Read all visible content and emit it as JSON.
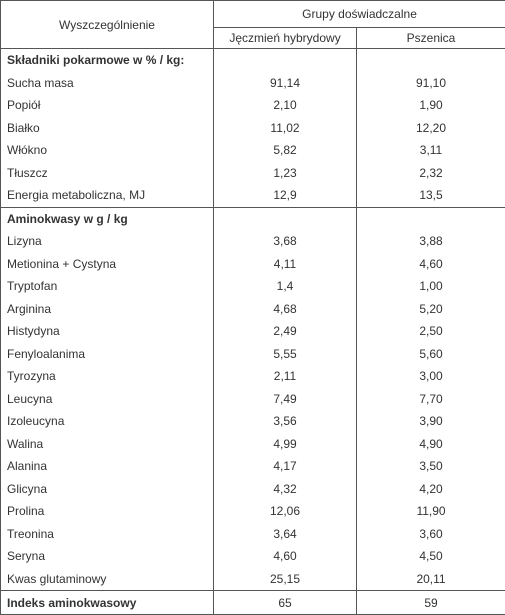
{
  "header": {
    "row_label": "Wyszczególnienie",
    "group": "Grupy doświadczalne",
    "columns": [
      "Jęczmień hybrydowy",
      "Pszenica"
    ]
  },
  "sections": [
    {
      "title": "Składniki pokarmowe w % / kg:",
      "rows": [
        [
          "Sucha masa",
          "91,14",
          "91,10"
        ],
        [
          "Popiół",
          "2,10",
          "1,90"
        ],
        [
          "Białko",
          "11,02",
          "12,20"
        ],
        [
          "Włókno",
          "5,82",
          "3,11"
        ],
        [
          "Tłuszcz",
          "1,23",
          "2,32"
        ],
        [
          "Energia metaboliczna, MJ",
          "12,9",
          "13,5"
        ]
      ]
    },
    {
      "title": "Aminokwasy w g / kg",
      "rows": [
        [
          "Lizyna",
          "3,68",
          "3,88"
        ],
        [
          "Metionina + Cystyna",
          "4,11",
          "4,60"
        ],
        [
          "Tryptofan",
          "1,4",
          "1,00"
        ],
        [
          "Arginina",
          "4,68",
          "5,20"
        ],
        [
          "Histydyna",
          "2,49",
          "2,50"
        ],
        [
          "Fenyloalanima",
          "5,55",
          "5,60"
        ],
        [
          "Tyrozyna",
          "2,11",
          "3,00"
        ],
        [
          "Leucyna",
          "7,49",
          "7,70"
        ],
        [
          "Izoleucyna",
          "3,56",
          "3,90"
        ],
        [
          "Walina",
          "4,99",
          "4,90"
        ],
        [
          "Alanina",
          "4,17",
          "3,50"
        ],
        [
          "Glicyna",
          "4,32",
          "4,20"
        ],
        [
          "Prolina",
          "12,06",
          "11,90"
        ],
        [
          "Treonina",
          "3,64",
          "3,60"
        ],
        [
          "Seryna",
          "4,60",
          "4,50"
        ],
        [
          "Kwas glutaminowy",
          "25,15",
          "20,11"
        ]
      ]
    }
  ],
  "footer": [
    "Indeks aminokwasowy",
    "65",
    "59"
  ]
}
